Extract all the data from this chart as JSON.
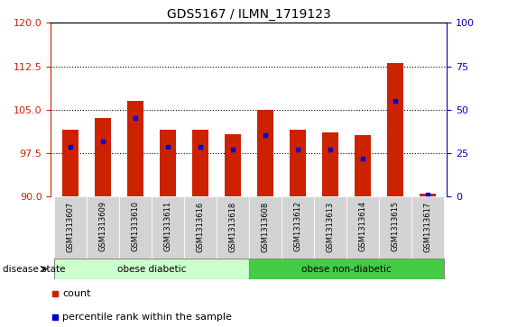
{
  "title": "GDS5167 / ILMN_1719123",
  "samples": [
    "GSM1313607",
    "GSM1313609",
    "GSM1313610",
    "GSM1313611",
    "GSM1313616",
    "GSM1313618",
    "GSM1313608",
    "GSM1313612",
    "GSM1313613",
    "GSM1313614",
    "GSM1313615",
    "GSM1313617"
  ],
  "count_values": [
    101.5,
    103.5,
    106.5,
    101.5,
    101.5,
    100.8,
    105.0,
    101.5,
    101.0,
    100.5,
    113.0,
    90.5
  ],
  "percentile_values": [
    98.5,
    99.5,
    103.5,
    98.5,
    98.5,
    98.0,
    100.5,
    98.0,
    98.0,
    96.5,
    106.5,
    90.3
  ],
  "y_min": 90,
  "y_max": 120,
  "y_ticks_left": [
    90,
    97.5,
    105,
    112.5,
    120
  ],
  "y_ticks_right": [
    0,
    25,
    50,
    75,
    100
  ],
  "bar_color": "#CC2200",
  "percentile_color": "#0000CC",
  "group1_label": "obese diabetic",
  "group2_label": "obese non-diabetic",
  "group1_count": 6,
  "group2_count": 6,
  "disease_state_label": "disease state",
  "legend_count_label": "count",
  "legend_percentile_label": "percentile rank within the sample",
  "dotted_grid_lines": [
    97.5,
    105,
    112.5
  ],
  "group1_color_light": "#CCFFCC",
  "group1_color_dark": "#88EE88",
  "group2_color_light": "#88EE88",
  "group2_color_dark": "#44CC44",
  "xtick_bg_color": "#D3D3D3"
}
